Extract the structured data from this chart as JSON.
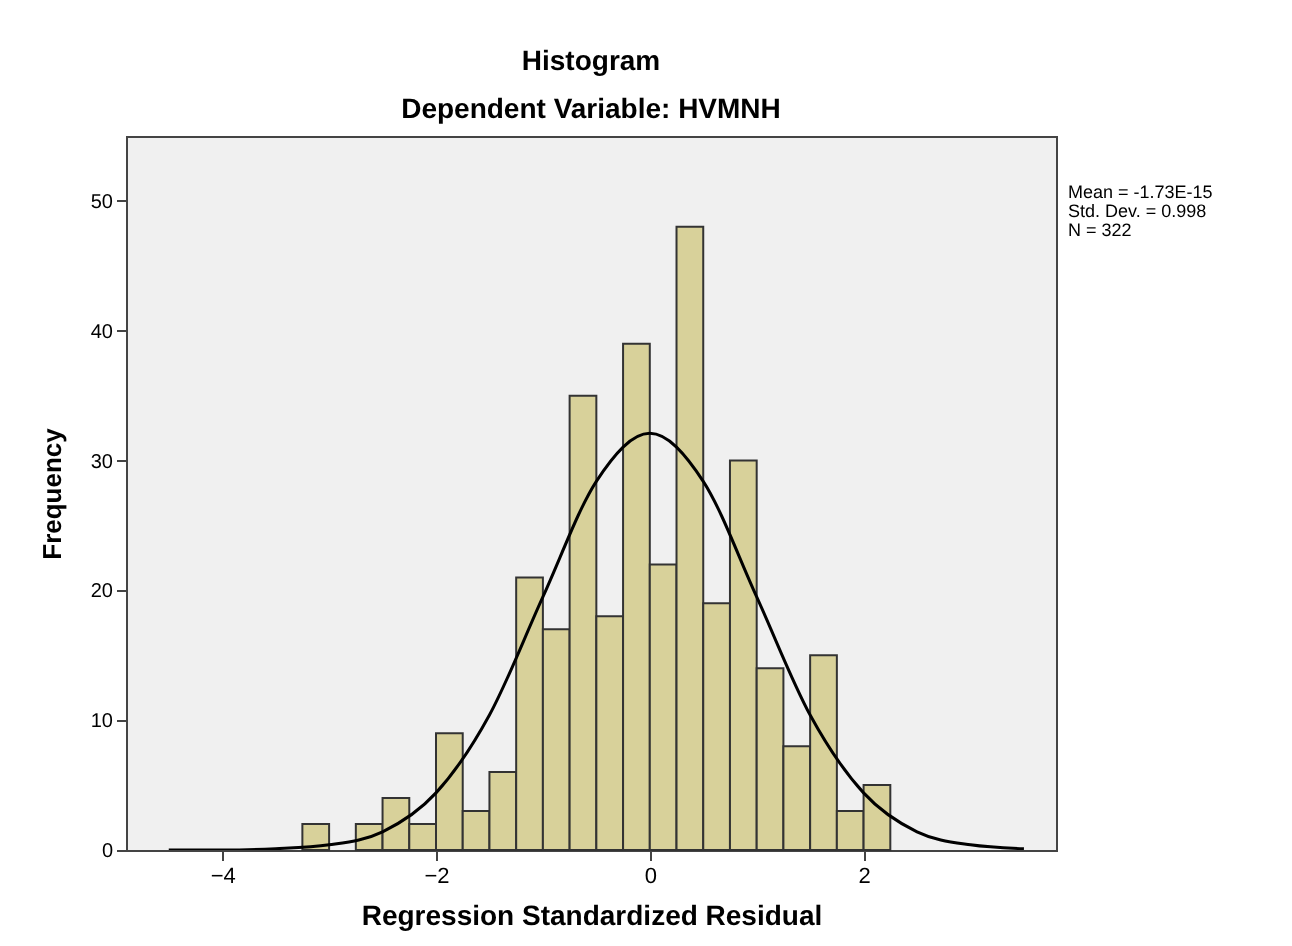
{
  "chart_data": {
    "type": "histogram",
    "title": "Histogram",
    "subtitle": "Dependent Variable: HVMNH",
    "xlabel": "Regression Standardized Residual",
    "ylabel": "Frequency",
    "bins": [
      -3.25,
      -3.0,
      -2.75,
      -2.5,
      -2.25,
      -2.0,
      -1.75,
      -1.5,
      -1.25,
      -1.0,
      -0.75,
      -0.5,
      -0.25,
      0,
      0.25,
      0.5,
      0.75,
      1.0,
      1.25,
      1.5,
      1.75,
      2.0,
      2.25
    ],
    "values": [
      2,
      0,
      2,
      4,
      2,
      9,
      3,
      6,
      21,
      17,
      35,
      18,
      39,
      22,
      48,
      19,
      30,
      14,
      8,
      15,
      3,
      5
    ],
    "color": "#d8d19a",
    "series": [
      {
        "type": "line",
        "color": "#000000",
        "x": [
          -4.5,
          -4,
          -3.5,
          -3,
          -2.5,
          -2,
          -1.5,
          -1,
          -0.5,
          0,
          0.5,
          1,
          1.5,
          2,
          2.5,
          3,
          3.5
        ],
        "values": [
          0,
          0,
          0.1,
          0.4,
          1.4,
          4.4,
          10.4,
          19.5,
          28.4,
          32.1,
          28.4,
          19.5,
          10.4,
          4.4,
          1.4,
          0.4,
          0.1
        ]
      }
    ],
    "xlim": [
      -4.9,
      3.8
    ],
    "xticks": [
      -4,
      -2,
      0,
      2
    ],
    "ylim": [
      0,
      55
    ],
    "yticks": [
      0,
      10,
      20,
      30,
      40,
      50
    ],
    "grid": false,
    "annotations": [
      "Mean = -1.73E-15",
      "Std. Dev. = 0.998",
      "N = 322"
    ]
  }
}
